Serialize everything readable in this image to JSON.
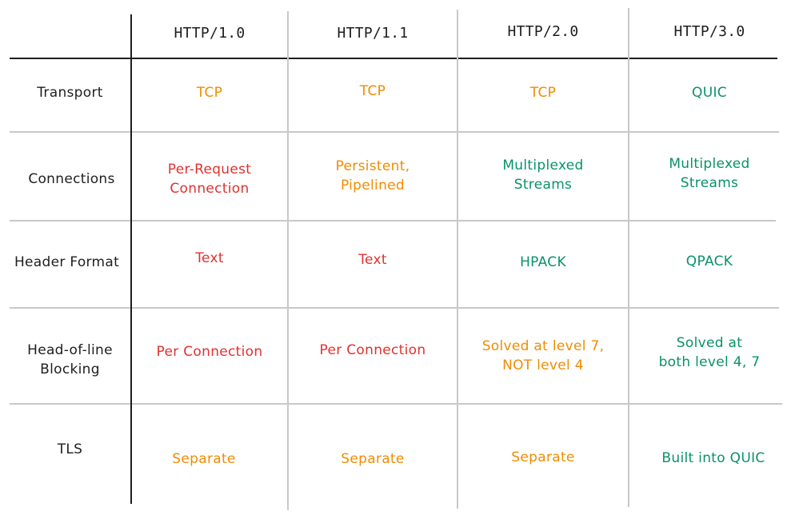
{
  "colors": {
    "red": "#e03131",
    "orange": "#f08c00",
    "green": "#099268",
    "ink": "#1e1e1e",
    "grid": "#c8c8c8"
  },
  "columns": [
    "HTTP/1.0",
    "HTTP/1.1",
    "HTTP/2.0",
    "HTTP/3.0"
  ],
  "rows": [
    {
      "label": "Transport",
      "cells": [
        {
          "text": "TCP",
          "tone": "orange"
        },
        {
          "text": "TCP",
          "tone": "orange"
        },
        {
          "text": "TCP",
          "tone": "orange"
        },
        {
          "text": "QUIC",
          "tone": "green"
        }
      ]
    },
    {
      "label": "Connections",
      "cells": [
        {
          "text": "Per-Request\nConnection",
          "tone": "red"
        },
        {
          "text": "Persistent,\nPipelined",
          "tone": "orange"
        },
        {
          "text": "Multiplexed\nStreams",
          "tone": "green"
        },
        {
          "text": "Multiplexed\nStreams",
          "tone": "green"
        }
      ]
    },
    {
      "label": "Header Format",
      "cells": [
        {
          "text": "Text",
          "tone": "red"
        },
        {
          "text": "Text",
          "tone": "red"
        },
        {
          "text": "HPACK",
          "tone": "green"
        },
        {
          "text": "QPACK",
          "tone": "green"
        }
      ]
    },
    {
      "label": "Head-of-line\nBlocking",
      "cells": [
        {
          "text": "Per Connection",
          "tone": "red"
        },
        {
          "text": "Per Connection",
          "tone": "red"
        },
        {
          "text": "Solved at level 7,\nNOT level 4",
          "tone": "orange"
        },
        {
          "text": "Solved at\nboth level 4, 7",
          "tone": "green"
        }
      ]
    },
    {
      "label": "TLS",
      "cells": [
        {
          "text": "Separate",
          "tone": "orange"
        },
        {
          "text": "Separate",
          "tone": "orange"
        },
        {
          "text": "Separate",
          "tone": "orange"
        },
        {
          "text": "Built into QUIC",
          "tone": "green"
        }
      ]
    }
  ]
}
